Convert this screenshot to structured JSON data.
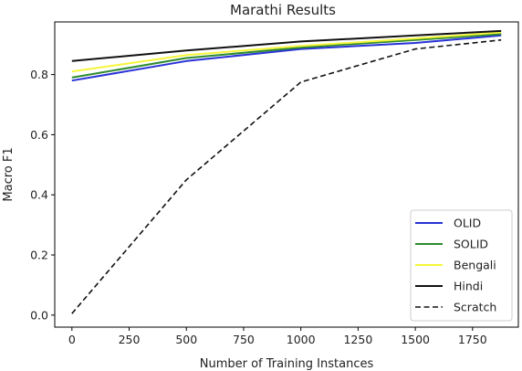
{
  "chart_data": {
    "type": "line",
    "title": "Marathi Results",
    "xlabel": "Number of Training Instances",
    "ylabel": "Macro F1",
    "xlim": [
      -75,
      1950
    ],
    "ylim": [
      -0.04,
      0.975
    ],
    "xticks": [
      0,
      250,
      500,
      750,
      1000,
      1250,
      1500,
      1750
    ],
    "yticks": [
      0.0,
      0.2,
      0.4,
      0.6,
      0.8
    ],
    "ytick_labels": [
      "0.0",
      "0.2",
      "0.4",
      "0.6",
      "0.8"
    ],
    "grid": false,
    "legend_position": "lower-right",
    "series": [
      {
        "name": "OLID",
        "color": "#2832d6",
        "style": "solid",
        "x": [
          0,
          500,
          1000,
          1500,
          1875
        ],
        "y": [
          0.78,
          0.845,
          0.885,
          0.905,
          0.93
        ]
      },
      {
        "name": "SOLID",
        "color": "#2e8b2e",
        "style": "solid",
        "x": [
          0,
          500,
          1000,
          1500,
          1875
        ],
        "y": [
          0.79,
          0.855,
          0.89,
          0.915,
          0.935
        ]
      },
      {
        "name": "Bengali",
        "color": "#f5f53a",
        "style": "solid",
        "x": [
          0,
          500,
          1000,
          1500,
          1875
        ],
        "y": [
          0.81,
          0.865,
          0.895,
          0.92,
          0.94
        ]
      },
      {
        "name": "Hindi",
        "color": "#111111",
        "style": "solid",
        "x": [
          0,
          500,
          1000,
          1500,
          1875
        ],
        "y": [
          0.845,
          0.88,
          0.91,
          0.93,
          0.945
        ]
      },
      {
        "name": "Scratch",
        "color": "#111111",
        "style": "dashed",
        "x": [
          0,
          500,
          1000,
          1500,
          1875
        ],
        "y": [
          0.005,
          0.45,
          0.775,
          0.885,
          0.915
        ]
      }
    ]
  }
}
